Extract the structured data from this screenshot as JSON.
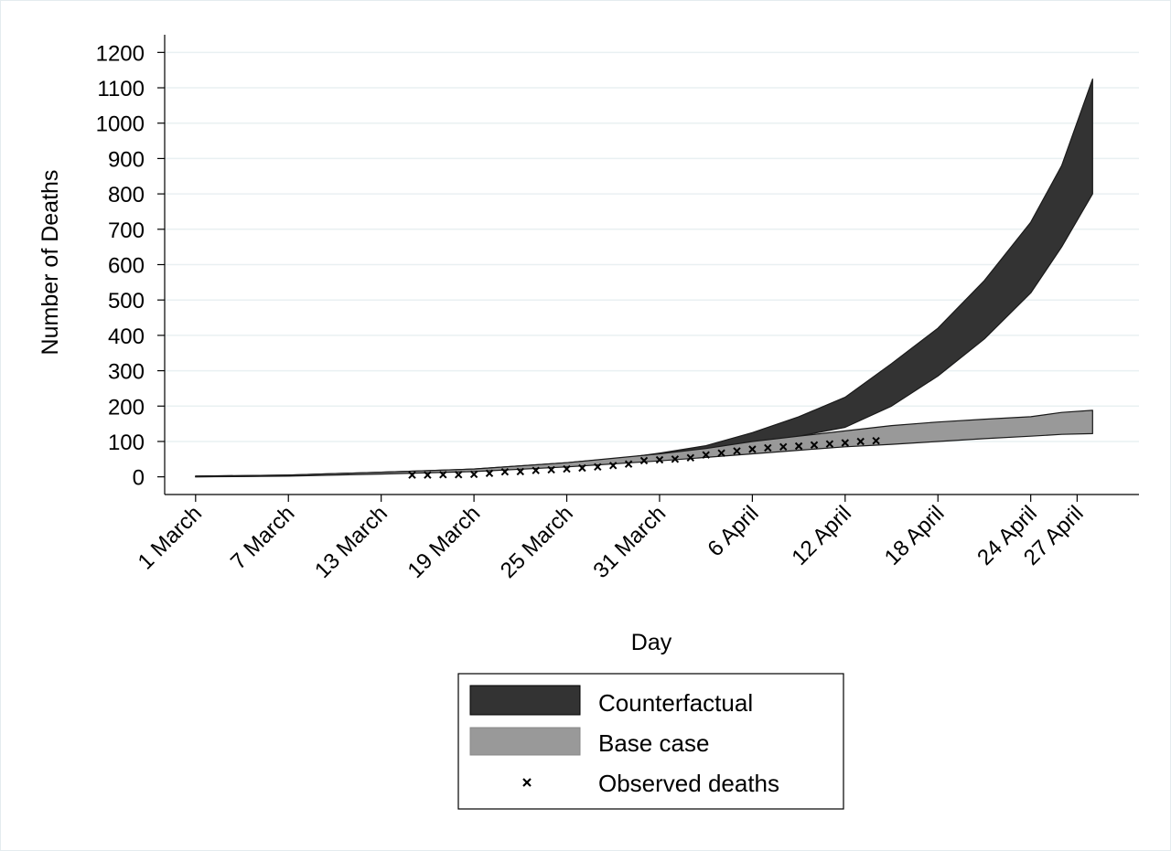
{
  "chart_data": {
    "type": "area",
    "title": "",
    "xlabel": "Day",
    "ylabel": "Number of Deaths",
    "ylim": [
      -50,
      1250
    ],
    "xlim": [
      "2020-02-28",
      "2020-05-01"
    ],
    "grid": true,
    "legend_position": "bottom",
    "y_ticks": [
      0,
      100,
      200,
      300,
      400,
      500,
      600,
      700,
      800,
      900,
      1000,
      1100,
      1200
    ],
    "x_ticks": [
      {
        "date": "2020-03-01",
        "label": "1 March"
      },
      {
        "date": "2020-03-07",
        "label": "7 March"
      },
      {
        "date": "2020-03-13",
        "label": "13 March"
      },
      {
        "date": "2020-03-19",
        "label": "19  March"
      },
      {
        "date": "2020-03-25",
        "label": "25 March"
      },
      {
        "date": "2020-03-31",
        "label": "31 March"
      },
      {
        "date": "2020-04-06",
        "label": "6 April"
      },
      {
        "date": "2020-04-12",
        "label": "12 April"
      },
      {
        "date": "2020-04-18",
        "label": "18 April"
      },
      {
        "date": "2020-04-24",
        "label": "24 April"
      },
      {
        "date": "2020-04-27",
        "label": "27 April"
      }
    ],
    "colors": {
      "counterfactual": "#333333",
      "base_case": "#999999",
      "band_edge": "#1a1a1a",
      "grid": "#e9f0f2",
      "observed": "#000000"
    },
    "series": [
      {
        "name": "Counterfactual",
        "kind": "band",
        "points": [
          {
            "x": "2020-03-01",
            "lo": 0,
            "hi": 2
          },
          {
            "x": "2020-03-07",
            "lo": 3,
            "hi": 5
          },
          {
            "x": "2020-03-13",
            "lo": 10,
            "hi": 13
          },
          {
            "x": "2020-03-19",
            "lo": 18,
            "hi": 22
          },
          {
            "x": "2020-03-25",
            "lo": 35,
            "hi": 40
          },
          {
            "x": "2020-03-29",
            "lo": 48,
            "hi": 55
          },
          {
            "x": "2020-03-31",
            "lo": 58,
            "hi": 67
          },
          {
            "x": "2020-04-03",
            "lo": 75,
            "hi": 88
          },
          {
            "x": "2020-04-06",
            "lo": 95,
            "hi": 125
          },
          {
            "x": "2020-04-09",
            "lo": 115,
            "hi": 170
          },
          {
            "x": "2020-04-12",
            "lo": 140,
            "hi": 225
          },
          {
            "x": "2020-04-15",
            "lo": 200,
            "hi": 320
          },
          {
            "x": "2020-04-18",
            "lo": 285,
            "hi": 420
          },
          {
            "x": "2020-04-21",
            "lo": 390,
            "hi": 555
          },
          {
            "x": "2020-04-24",
            "lo": 520,
            "hi": 720
          },
          {
            "x": "2020-04-26",
            "lo": 650,
            "hi": 880
          },
          {
            "x": "2020-04-28",
            "lo": 800,
            "hi": 1125
          }
        ]
      },
      {
        "name": "Base case",
        "kind": "band",
        "points": [
          {
            "x": "2020-03-01",
            "lo": 0,
            "hi": 2
          },
          {
            "x": "2020-03-07",
            "lo": 2,
            "hi": 5
          },
          {
            "x": "2020-03-13",
            "lo": 8,
            "hi": 13
          },
          {
            "x": "2020-03-19",
            "lo": 15,
            "hi": 22
          },
          {
            "x": "2020-03-25",
            "lo": 28,
            "hi": 40
          },
          {
            "x": "2020-03-31",
            "lo": 45,
            "hi": 65
          },
          {
            "x": "2020-04-03",
            "lo": 55,
            "hi": 80
          },
          {
            "x": "2020-04-06",
            "lo": 65,
            "hi": 100
          },
          {
            "x": "2020-04-09",
            "lo": 75,
            "hi": 115
          },
          {
            "x": "2020-04-12",
            "lo": 85,
            "hi": 130
          },
          {
            "x": "2020-04-15",
            "lo": 92,
            "hi": 145
          },
          {
            "x": "2020-04-18",
            "lo": 100,
            "hi": 155
          },
          {
            "x": "2020-04-21",
            "lo": 108,
            "hi": 163
          },
          {
            "x": "2020-04-24",
            "lo": 115,
            "hi": 170
          },
          {
            "x": "2020-04-26",
            "lo": 120,
            "hi": 182
          },
          {
            "x": "2020-04-28",
            "lo": 122,
            "hi": 188
          }
        ]
      },
      {
        "name": "Observed deaths",
        "kind": "scatter",
        "points": [
          {
            "x": "2020-03-15",
            "y": 5
          },
          {
            "x": "2020-03-16",
            "y": 5
          },
          {
            "x": "2020-03-17",
            "y": 6
          },
          {
            "x": "2020-03-18",
            "y": 6
          },
          {
            "x": "2020-03-19",
            "y": 7
          },
          {
            "x": "2020-03-20",
            "y": 10
          },
          {
            "x": "2020-03-21",
            "y": 14
          },
          {
            "x": "2020-03-22",
            "y": 15
          },
          {
            "x": "2020-03-23",
            "y": 18
          },
          {
            "x": "2020-03-24",
            "y": 20
          },
          {
            "x": "2020-03-25",
            "y": 22
          },
          {
            "x": "2020-03-26",
            "y": 25
          },
          {
            "x": "2020-03-27",
            "y": 28
          },
          {
            "x": "2020-03-28",
            "y": 32
          },
          {
            "x": "2020-03-29",
            "y": 36
          },
          {
            "x": "2020-03-30",
            "y": 46
          },
          {
            "x": "2020-03-31",
            "y": 48
          },
          {
            "x": "2020-04-01",
            "y": 50
          },
          {
            "x": "2020-04-02",
            "y": 54
          },
          {
            "x": "2020-04-03",
            "y": 62
          },
          {
            "x": "2020-04-04",
            "y": 67
          },
          {
            "x": "2020-04-05",
            "y": 73
          },
          {
            "x": "2020-04-06",
            "y": 78
          },
          {
            "x": "2020-04-07",
            "y": 82
          },
          {
            "x": "2020-04-08",
            "y": 85
          },
          {
            "x": "2020-04-09",
            "y": 87
          },
          {
            "x": "2020-04-10",
            "y": 90
          },
          {
            "x": "2020-04-11",
            "y": 93
          },
          {
            "x": "2020-04-12",
            "y": 96
          },
          {
            "x": "2020-04-13",
            "y": 100
          },
          {
            "x": "2020-04-14",
            "y": 102
          }
        ]
      }
    ],
    "legend": [
      {
        "key": "counterfactual",
        "label": "Counterfactual",
        "symbol": "area"
      },
      {
        "key": "base_case",
        "label": "Base case",
        "symbol": "area"
      },
      {
        "key": "observed",
        "label": "Observed deaths",
        "symbol": "x-marker"
      }
    ]
  }
}
